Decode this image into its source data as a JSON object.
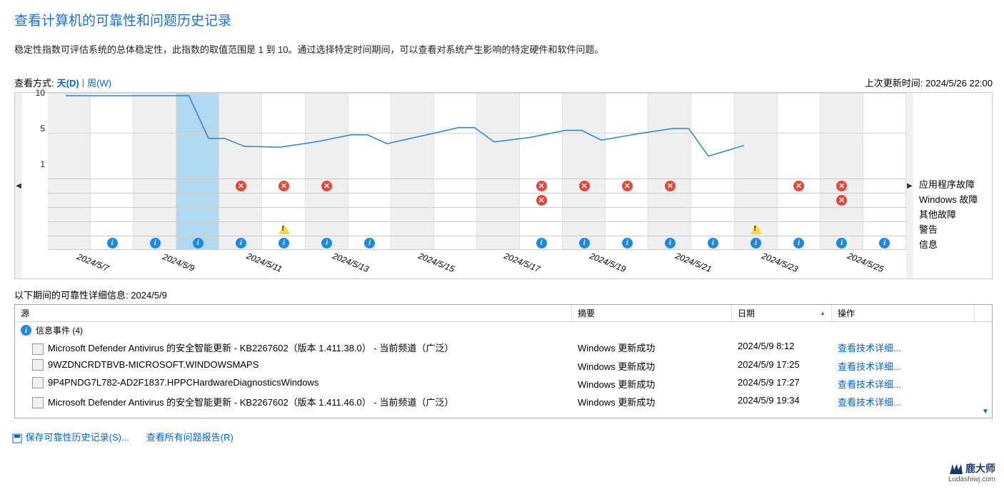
{
  "title": "查看计算机的可靠性和问题历史记录",
  "subtitle": "稳定性指数可评估系统的总体稳定性，此指数的取值范围是 1 到 10。通过选择特定时间期间，可以查看对系统产生影响的特定硬件和软件问题。",
  "viewBy": {
    "label": "查看方式:",
    "day": "天(D)",
    "week": "周(W)",
    "sep": " | "
  },
  "lastUpdate": {
    "label": "上次更新时间:",
    "value": "2024/5/26 22:00"
  },
  "yTicks": [
    "10",
    "5",
    "1"
  ],
  "yPositions": [
    0,
    50,
    100
  ],
  "chart": {
    "numCols": 20,
    "selectedCol": 3,
    "lineColor": "#2a82d0",
    "points": [
      10,
      10,
      10,
      10,
      5.2,
      4.3,
      4.2,
      4.8,
      5.6,
      4.6,
      5.5,
      6.4,
      4.8,
      5.3,
      6.1,
      5.0,
      5.7,
      6.3,
      3.2,
      4.4
    ],
    "dates": [
      "2024/5/7",
      "2024/5/9",
      "2024/5/11",
      "2024/5/13",
      "2024/5/15",
      "2024/5/17",
      "2024/5/19",
      "2024/5/21",
      "2024/5/23",
      "2024/5/25"
    ],
    "rows": {
      "appFail": [
        "",
        "",
        "",
        "",
        "e",
        "e",
        "e",
        "",
        "",
        "",
        "",
        "e",
        "e",
        "e",
        "e",
        "",
        "",
        "e",
        "e",
        ""
      ],
      "winFail": [
        "",
        "",
        "",
        "",
        "",
        "",
        "",
        "",
        "",
        "",
        "",
        "e",
        "",
        "",
        "",
        "",
        "",
        "",
        "e",
        ""
      ],
      "misc": [
        "",
        "",
        "",
        "",
        "",
        "",
        "",
        "",
        "",
        "",
        "",
        "",
        "",
        "",
        "",
        "",
        "",
        "",
        "",
        ""
      ],
      "warn": [
        "",
        "",
        "",
        "",
        "",
        "w",
        "",
        "",
        "",
        "",
        "",
        "",
        "",
        "",
        "",
        "",
        "w",
        "",
        "",
        ""
      ],
      "info": [
        "",
        "i",
        "i",
        "i",
        "i",
        "i",
        "i",
        "i",
        "",
        "",
        "",
        "i",
        "i",
        "i",
        "i",
        "i",
        "i",
        "i",
        "i",
        "i"
      ]
    }
  },
  "legend": {
    "appFail": "应用程序故障",
    "winFail": "Windows 故障",
    "misc": "其他故障",
    "warn": "警告",
    "info": "信息"
  },
  "detailHeader": {
    "prefix": "以下期间的可靠性详细信息:",
    "date": "2024/5/9"
  },
  "columns": {
    "source": "源",
    "summary": "摘要",
    "date": "日期",
    "action": "操作"
  },
  "group": {
    "label": "信息事件 (4)"
  },
  "events": [
    {
      "source": "Microsoft Defender Antivirus 的安全智能更新 - KB2267602（版本 1.411.38.0） - 当前频道（广泛）",
      "summary": "Windows 更新成功",
      "date": "2024/5/9 8:12",
      "action": "查看技术详细..."
    },
    {
      "source": "9WZDNCRDTBVB-MICROSOFT.WINDOWSMAPS",
      "summary": "Windows 更新成功",
      "date": "2024/5/9 17:25",
      "action": "查看技术详细..."
    },
    {
      "source": "9P4PNDG7L782-AD2F1837.HPPCHardwareDiagnosticsWindows",
      "summary": "Windows 更新成功",
      "date": "2024/5/9 17:27",
      "action": "查看技术详细..."
    },
    {
      "source": "Microsoft Defender Antivirus 的安全智能更新 - KB2267602（版本 1.411.46.0） - 当前频道（广泛）",
      "summary": "Windows 更新成功",
      "date": "2024/5/9 19:34",
      "action": "查看技术详细..."
    }
  ],
  "footer": {
    "save": "保存可靠性历史记录(S)...",
    "viewAll": "查看所有问题报告(R)"
  },
  "logo": {
    "main": "鹿大师",
    "sub": "Ludashiwj.com"
  },
  "colors": {
    "selBg": "#b0d8f0",
    "altBg": "#efefef"
  }
}
